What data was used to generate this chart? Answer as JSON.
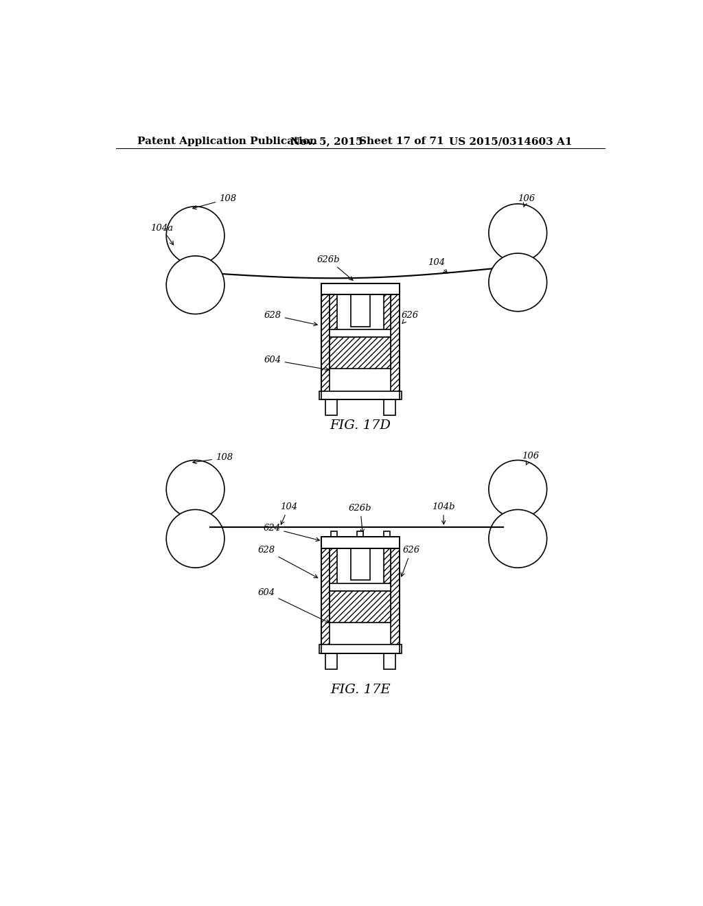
{
  "title_header": "Patent Application Publication",
  "date_header": "Nov. 5, 2015",
  "sheet_header": "Sheet 17 of 71",
  "patent_header": "US 2015/0314603 A1",
  "fig1_label": "FIG. 17D",
  "fig2_label": "FIG. 17E",
  "background_color": "#ffffff",
  "header_fontsize": 11,
  "label_fontsize": 9.5,
  "fig_label_fontsize": 14
}
